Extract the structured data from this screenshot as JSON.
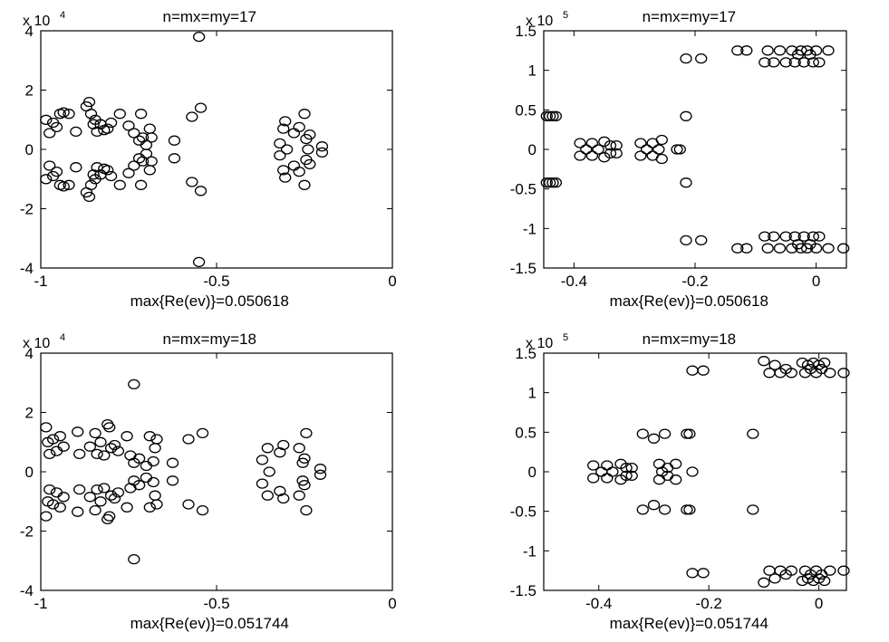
{
  "chart_data": [
    {
      "type": "scatter",
      "title": "n=mx=my=17",
      "xlabel": "max{Re(ev)}=0.050618",
      "exponent_base": "x 10",
      "exponent_power": "4",
      "xlim": [
        -1,
        0
      ],
      "ylim": [
        -4,
        4
      ],
      "xticks": [
        -1,
        -0.5,
        0
      ],
      "xtick_labels": [
        "-1",
        "-0.5",
        "0"
      ],
      "yticks": [
        -4,
        -2,
        0,
        2,
        4
      ],
      "ytick_labels": [
        "-4",
        "-2",
        "0",
        "2",
        "4"
      ],
      "y_scale_factor": 10000,
      "grid": false,
      "marker": "o",
      "points": [
        [
          -0.985,
          1.0
        ],
        [
          -0.985,
          -1.0
        ],
        [
          -0.975,
          0.55
        ],
        [
          -0.975,
          -0.55
        ],
        [
          -0.965,
          0.9
        ],
        [
          -0.965,
          -0.9
        ],
        [
          -0.955,
          0.75
        ],
        [
          -0.955,
          -0.75
        ],
        [
          -0.945,
          1.2
        ],
        [
          -0.945,
          -1.2
        ],
        [
          -0.935,
          1.25
        ],
        [
          -0.935,
          -1.25
        ],
        [
          -0.92,
          1.2
        ],
        [
          -0.92,
          -1.2
        ],
        [
          -0.9,
          0.6
        ],
        [
          -0.9,
          -0.6
        ],
        [
          -0.87,
          1.45
        ],
        [
          -0.87,
          -1.45
        ],
        [
          -0.862,
          1.6
        ],
        [
          -0.862,
          -1.6
        ],
        [
          -0.857,
          1.2
        ],
        [
          -0.857,
          -1.2
        ],
        [
          -0.85,
          0.85
        ],
        [
          -0.85,
          -0.85
        ],
        [
          -0.845,
          1.0
        ],
        [
          -0.845,
          -1.0
        ],
        [
          -0.84,
          0.6
        ],
        [
          -0.84,
          -0.6
        ],
        [
          -0.83,
          0.85
        ],
        [
          -0.83,
          -0.85
        ],
        [
          -0.82,
          0.65
        ],
        [
          -0.82,
          -0.65
        ],
        [
          -0.81,
          0.7
        ],
        [
          -0.81,
          -0.7
        ],
        [
          -0.8,
          0.9
        ],
        [
          -0.8,
          -0.9
        ],
        [
          -0.775,
          1.2
        ],
        [
          -0.775,
          -1.2
        ],
        [
          -0.75,
          0.8
        ],
        [
          -0.75,
          -0.8
        ],
        [
          -0.735,
          0.55
        ],
        [
          -0.735,
          -0.55
        ],
        [
          -0.72,
          0.3
        ],
        [
          -0.72,
          -0.3
        ],
        [
          -0.715,
          1.2
        ],
        [
          -0.715,
          -1.2
        ],
        [
          -0.71,
          0.4
        ],
        [
          -0.71,
          -0.4
        ],
        [
          -0.7,
          0.15
        ],
        [
          -0.7,
          -0.15
        ],
        [
          -0.69,
          0.7
        ],
        [
          -0.69,
          -0.7
        ],
        [
          -0.685,
          0.4
        ],
        [
          -0.685,
          -0.4
        ],
        [
          -0.62,
          0.3
        ],
        [
          -0.62,
          -0.3
        ],
        [
          -0.57,
          1.1
        ],
        [
          -0.57,
          -1.1
        ],
        [
          -0.545,
          1.4
        ],
        [
          -0.545,
          -1.4
        ],
        [
          -0.55,
          3.8
        ],
        [
          -0.55,
          -3.8
        ],
        [
          -0.32,
          0.2
        ],
        [
          -0.32,
          -0.2
        ],
        [
          -0.31,
          0.7
        ],
        [
          -0.31,
          -0.7
        ],
        [
          -0.305,
          0.95
        ],
        [
          -0.305,
          -0.95
        ],
        [
          -0.3,
          0.0
        ],
        [
          -0.28,
          0.55
        ],
        [
          -0.28,
          -0.55
        ],
        [
          -0.265,
          0.75
        ],
        [
          -0.265,
          -0.75
        ],
        [
          -0.25,
          1.2
        ],
        [
          -0.25,
          -1.2
        ],
        [
          -0.245,
          0.35
        ],
        [
          -0.245,
          -0.35
        ],
        [
          -0.24,
          0.0
        ],
        [
          -0.235,
          0.5
        ],
        [
          -0.235,
          -0.5
        ],
        [
          -0.2,
          0.1
        ],
        [
          -0.2,
          -0.1
        ]
      ]
    },
    {
      "type": "scatter",
      "title": "n=mx=my=17",
      "xlabel": "max{Re(ev)}=0.050618",
      "exponent_base": "x 10",
      "exponent_power": "5",
      "xlim": [
        -0.45,
        0.05
      ],
      "ylim": [
        -1.5,
        1.5
      ],
      "xticks": [
        -0.4,
        -0.2,
        0
      ],
      "xtick_labels": [
        "-0.4",
        "-0.2",
        "0"
      ],
      "yticks": [
        -1.5,
        -1,
        -0.5,
        0,
        0.5,
        1,
        1.5
      ],
      "ytick_labels": [
        "-1.5",
        "-1",
        "-0.5",
        "0",
        "0.5",
        "1",
        "1.5"
      ],
      "y_scale_factor": 100000,
      "grid": false,
      "marker": "o",
      "points": [
        [
          -0.445,
          0.42
        ],
        [
          -0.44,
          0.42
        ],
        [
          -0.435,
          0.42
        ],
        [
          -0.43,
          0.42
        ],
        [
          -0.445,
          -0.42
        ],
        [
          -0.44,
          -0.42
        ],
        [
          -0.435,
          -0.42
        ],
        [
          -0.43,
          -0.42
        ],
        [
          -0.39,
          0.08
        ],
        [
          -0.39,
          -0.08
        ],
        [
          -0.38,
          0.0
        ],
        [
          -0.37,
          0.08
        ],
        [
          -0.37,
          -0.08
        ],
        [
          -0.36,
          0.0
        ],
        [
          -0.35,
          0.1
        ],
        [
          -0.35,
          -0.1
        ],
        [
          -0.34,
          0.05
        ],
        [
          -0.34,
          -0.05
        ],
        [
          -0.33,
          0.05
        ],
        [
          -0.33,
          -0.05
        ],
        [
          -0.29,
          0.08
        ],
        [
          -0.29,
          -0.08
        ],
        [
          -0.28,
          0.0
        ],
        [
          -0.27,
          0.08
        ],
        [
          -0.27,
          -0.08
        ],
        [
          -0.26,
          0.0
        ],
        [
          -0.255,
          0.12
        ],
        [
          -0.255,
          -0.12
        ],
        [
          -0.23,
          0.0
        ],
        [
          -0.225,
          0.0
        ],
        [
          -0.215,
          0.42
        ],
        [
          -0.215,
          -0.42
        ],
        [
          -0.215,
          1.15
        ],
        [
          -0.215,
          -1.15
        ],
        [
          -0.19,
          1.15
        ],
        [
          -0.19,
          -1.15
        ],
        [
          -0.13,
          1.25
        ],
        [
          -0.13,
          -1.25
        ],
        [
          -0.115,
          1.25
        ],
        [
          -0.115,
          -1.25
        ],
        [
          -0.085,
          1.1
        ],
        [
          -0.085,
          -1.1
        ],
        [
          -0.08,
          1.25
        ],
        [
          -0.08,
          -1.25
        ],
        [
          -0.07,
          1.1
        ],
        [
          -0.07,
          -1.1
        ],
        [
          -0.06,
          1.25
        ],
        [
          -0.06,
          -1.25
        ],
        [
          -0.05,
          1.1
        ],
        [
          -0.05,
          -1.1
        ],
        [
          -0.04,
          1.25
        ],
        [
          -0.04,
          -1.25
        ],
        [
          -0.035,
          1.1
        ],
        [
          -0.035,
          -1.1
        ],
        [
          -0.03,
          1.2
        ],
        [
          -0.03,
          -1.2
        ],
        [
          -0.025,
          1.25
        ],
        [
          -0.025,
          -1.25
        ],
        [
          -0.02,
          1.1
        ],
        [
          -0.02,
          -1.1
        ],
        [
          -0.015,
          1.25
        ],
        [
          -0.015,
          -1.25
        ],
        [
          -0.01,
          1.2
        ],
        [
          -0.01,
          -1.2
        ],
        [
          -0.005,
          1.1
        ],
        [
          -0.005,
          -1.1
        ],
        [
          0.0,
          1.25
        ],
        [
          0.0,
          -1.25
        ],
        [
          0.005,
          1.1
        ],
        [
          0.005,
          -1.1
        ],
        [
          0.02,
          1.25
        ],
        [
          0.02,
          -1.25
        ],
        [
          0.045,
          -1.25
        ]
      ]
    },
    {
      "type": "scatter",
      "title": "n=mx=my=18",
      "xlabel": "max{Re(ev)}=0.051744",
      "exponent_base": "x 10",
      "exponent_power": "4",
      "xlim": [
        -1,
        0
      ],
      "ylim": [
        -4,
        4
      ],
      "xticks": [
        -1,
        -0.5,
        0
      ],
      "xtick_labels": [
        "-1",
        "-0.5",
        "0"
      ],
      "yticks": [
        -4,
        -2,
        0,
        2,
        4
      ],
      "ytick_labels": [
        "-4",
        "-2",
        "0",
        "2",
        "4"
      ],
      "y_scale_factor": 10000,
      "grid": false,
      "marker": "o",
      "points": [
        [
          -0.985,
          1.5
        ],
        [
          -0.985,
          -1.5
        ],
        [
          -0.98,
          1.0
        ],
        [
          -0.98,
          -1.0
        ],
        [
          -0.975,
          0.6
        ],
        [
          -0.975,
          -0.6
        ],
        [
          -0.965,
          1.1
        ],
        [
          -0.965,
          -1.1
        ],
        [
          -0.955,
          0.7
        ],
        [
          -0.955,
          -0.7
        ],
        [
          -0.945,
          1.2
        ],
        [
          -0.945,
          -1.2
        ],
        [
          -0.935,
          0.85
        ],
        [
          -0.935,
          -0.85
        ],
        [
          -0.895,
          1.35
        ],
        [
          -0.895,
          -1.35
        ],
        [
          -0.89,
          0.6
        ],
        [
          -0.89,
          -0.6
        ],
        [
          -0.86,
          0.85
        ],
        [
          -0.86,
          -0.85
        ],
        [
          -0.845,
          1.3
        ],
        [
          -0.845,
          -1.3
        ],
        [
          -0.84,
          0.6
        ],
        [
          -0.84,
          -0.6
        ],
        [
          -0.83,
          1.0
        ],
        [
          -0.83,
          -1.0
        ],
        [
          -0.82,
          0.55
        ],
        [
          -0.82,
          -0.55
        ],
        [
          -0.81,
          1.6
        ],
        [
          -0.81,
          -1.6
        ],
        [
          -0.805,
          1.5
        ],
        [
          -0.805,
          -1.5
        ],
        [
          -0.8,
          0.8
        ],
        [
          -0.8,
          -0.8
        ],
        [
          -0.79,
          0.9
        ],
        [
          -0.79,
          -0.9
        ],
        [
          -0.78,
          0.7
        ],
        [
          -0.78,
          -0.7
        ],
        [
          -0.755,
          1.2
        ],
        [
          -0.755,
          -1.2
        ],
        [
          -0.745,
          0.55
        ],
        [
          -0.745,
          -0.55
        ],
        [
          -0.735,
          0.3
        ],
        [
          -0.735,
          -0.3
        ],
        [
          -0.72,
          0.45
        ],
        [
          -0.72,
          -0.45
        ],
        [
          -0.7,
          0.2
        ],
        [
          -0.7,
          -0.2
        ],
        [
          -0.69,
          1.2
        ],
        [
          -0.69,
          -1.2
        ],
        [
          -0.68,
          0.35
        ],
        [
          -0.68,
          -0.35
        ],
        [
          -0.675,
          0.8
        ],
        [
          -0.675,
          -0.8
        ],
        [
          -0.67,
          1.1
        ],
        [
          -0.67,
          -1.1
        ],
        [
          -0.735,
          2.95
        ],
        [
          -0.735,
          -2.95
        ],
        [
          -0.625,
          0.3
        ],
        [
          -0.625,
          -0.3
        ],
        [
          -0.58,
          1.1
        ],
        [
          -0.58,
          -1.1
        ],
        [
          -0.54,
          1.3
        ],
        [
          -0.54,
          -1.3
        ],
        [
          -0.37,
          0.4
        ],
        [
          -0.37,
          -0.4
        ],
        [
          -0.355,
          0.8
        ],
        [
          -0.355,
          -0.8
        ],
        [
          -0.35,
          0.0
        ],
        [
          -0.32,
          0.65
        ],
        [
          -0.32,
          -0.65
        ],
        [
          -0.31,
          0.9
        ],
        [
          -0.31,
          -0.9
        ],
        [
          -0.265,
          0.8
        ],
        [
          -0.265,
          -0.8
        ],
        [
          -0.255,
          0.3
        ],
        [
          -0.255,
          -0.3
        ],
        [
          -0.25,
          0.45
        ],
        [
          -0.25,
          -0.45
        ],
        [
          -0.245,
          1.3
        ],
        [
          -0.245,
          -1.3
        ],
        [
          -0.205,
          0.1
        ],
        [
          -0.205,
          -0.1
        ]
      ]
    },
    {
      "type": "scatter",
      "title": "n=mx=my=18",
      "xlabel": "max{Re(ev)}=0.051744",
      "exponent_base": "x 10",
      "exponent_power": "5",
      "xlim": [
        -0.5,
        0.05
      ],
      "ylim": [
        -1.5,
        1.5
      ],
      "xticks": [
        -0.4,
        -0.2,
        0
      ],
      "xtick_labels": [
        "-0.4",
        "-0.2",
        "0"
      ],
      "yticks": [
        -1.5,
        -1,
        -0.5,
        0,
        0.5,
        1,
        1.5
      ],
      "ytick_labels": [
        "-1.5",
        "-1",
        "-0.5",
        "0",
        "0.5",
        "1",
        "1.5"
      ],
      "y_scale_factor": 100000,
      "grid": false,
      "marker": "o",
      "points": [
        [
          -0.41,
          0.08
        ],
        [
          -0.41,
          -0.08
        ],
        [
          -0.395,
          0.0
        ],
        [
          -0.385,
          0.08
        ],
        [
          -0.385,
          -0.08
        ],
        [
          -0.375,
          0.0
        ],
        [
          -0.36,
          0.1
        ],
        [
          -0.36,
          -0.1
        ],
        [
          -0.35,
          0.05
        ],
        [
          -0.35,
          -0.05
        ],
        [
          -0.34,
          0.05
        ],
        [
          -0.34,
          -0.05
        ],
        [
          -0.32,
          0.48
        ],
        [
          -0.32,
          -0.48
        ],
        [
          -0.3,
          0.42
        ],
        [
          -0.3,
          -0.42
        ],
        [
          -0.29,
          0.1
        ],
        [
          -0.29,
          -0.1
        ],
        [
          -0.285,
          0.0
        ],
        [
          -0.28,
          0.48
        ],
        [
          -0.28,
          -0.48
        ],
        [
          -0.275,
          0.05
        ],
        [
          -0.275,
          -0.05
        ],
        [
          -0.26,
          0.1
        ],
        [
          -0.26,
          -0.1
        ],
        [
          -0.24,
          0.48
        ],
        [
          -0.24,
          -0.48
        ],
        [
          -0.235,
          0.48
        ],
        [
          -0.235,
          -0.48
        ],
        [
          -0.23,
          0.0
        ],
        [
          -0.23,
          1.28
        ],
        [
          -0.23,
          -1.28
        ],
        [
          -0.21,
          1.28
        ],
        [
          -0.21,
          -1.28
        ],
        [
          -0.12,
          0.48
        ],
        [
          -0.12,
          -0.48
        ],
        [
          -0.1,
          1.4
        ],
        [
          -0.1,
          -1.4
        ],
        [
          -0.09,
          1.25
        ],
        [
          -0.09,
          -1.25
        ],
        [
          -0.08,
          1.35
        ],
        [
          -0.08,
          -1.35
        ],
        [
          -0.07,
          1.25
        ],
        [
          -0.07,
          -1.25
        ],
        [
          -0.06,
          1.3
        ],
        [
          -0.06,
          -1.3
        ],
        [
          -0.05,
          1.25
        ],
        [
          -0.05,
          -1.25
        ],
        [
          -0.03,
          1.38
        ],
        [
          -0.03,
          -1.38
        ],
        [
          -0.025,
          1.25
        ],
        [
          -0.025,
          -1.25
        ],
        [
          -0.02,
          1.35
        ],
        [
          -0.02,
          -1.35
        ],
        [
          -0.015,
          1.3
        ],
        [
          -0.015,
          -1.3
        ],
        [
          -0.01,
          1.38
        ],
        [
          -0.01,
          -1.38
        ],
        [
          -0.005,
          1.25
        ],
        [
          -0.005,
          -1.25
        ],
        [
          0.0,
          1.35
        ],
        [
          0.0,
          -1.35
        ],
        [
          0.005,
          1.3
        ],
        [
          0.005,
          -1.3
        ],
        [
          0.01,
          1.38
        ],
        [
          0.01,
          -1.38
        ],
        [
          0.02,
          1.25
        ],
        [
          0.02,
          -1.25
        ],
        [
          0.045,
          1.25
        ],
        [
          0.045,
          -1.25
        ]
      ]
    }
  ]
}
